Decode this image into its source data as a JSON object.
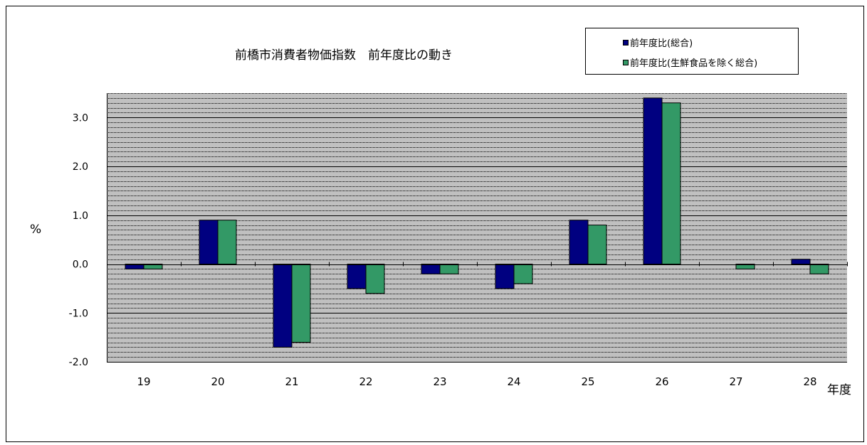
{
  "chart_data": {
    "type": "bar",
    "title": "前橋市消費者物価指数　前年度比の動き",
    "ylabel": "%",
    "xunit": "年度",
    "categories": [
      "19",
      "20",
      "21",
      "22",
      "23",
      "24",
      "25",
      "26",
      "27",
      "28"
    ],
    "series": [
      {
        "name": "前年度比(総合)",
        "color": "#000080",
        "values": [
          -0.1,
          0.9,
          -1.7,
          -0.5,
          -0.2,
          -0.5,
          0.9,
          3.4,
          0.0,
          0.1
        ]
      },
      {
        "name": "前年度比(生鮮食品を除く総合)",
        "color": "#339966",
        "values": [
          -0.1,
          0.9,
          -1.6,
          -0.6,
          -0.2,
          -0.4,
          0.8,
          3.3,
          -0.1,
          -0.2
        ]
      }
    ],
    "ylim": [
      -2.0,
      3.5
    ],
    "yticks": [
      "3.0",
      "2.0",
      "1.0",
      "0.0",
      "-1.0",
      "-2.0"
    ],
    "grid": true,
    "legend": "top-right",
    "plot_background": "#c0c0c0"
  }
}
